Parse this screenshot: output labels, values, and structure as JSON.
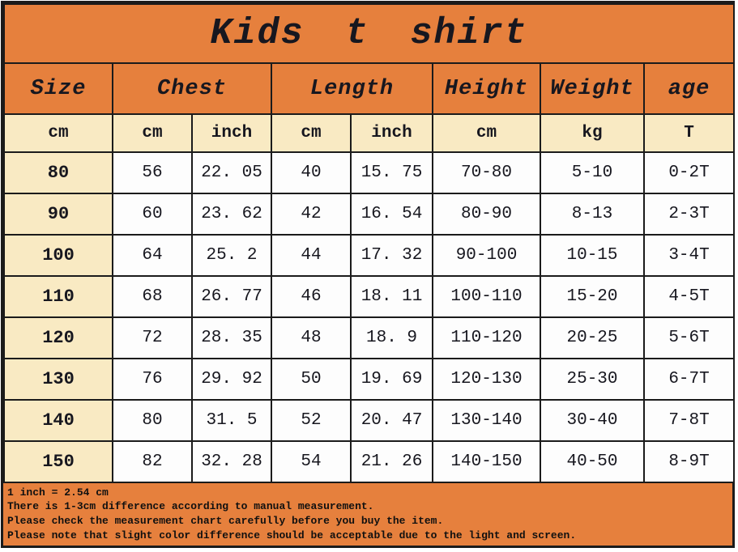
{
  "colors": {
    "orange": "#e6803d",
    "cream": "#f9eac3",
    "cell_white": "#fdfdfd",
    "border_black": "#1b1b1b",
    "text": "#17171f"
  },
  "chart_data": {
    "type": "table",
    "title": "Kids t shirt",
    "column_groups": [
      {
        "label": "Size",
        "span": 1
      },
      {
        "label": "Chest",
        "span": 2
      },
      {
        "label": "Length",
        "span": 2
      },
      {
        "label": "Height",
        "span": 1
      },
      {
        "label": "Weight",
        "span": 1
      },
      {
        "label": "age",
        "span": 1
      }
    ],
    "unit_row": [
      "cm",
      "cm",
      "inch",
      "cm",
      "inch",
      "cm",
      "kg",
      "T"
    ],
    "rows": [
      [
        "80",
        "56",
        "22. 05",
        "40",
        "15. 75",
        "70-80",
        "5-10",
        "0-2T"
      ],
      [
        "90",
        "60",
        "23. 62",
        "42",
        "16. 54",
        "80-90",
        "8-13",
        "2-3T"
      ],
      [
        "100",
        "64",
        "25. 2",
        "44",
        "17. 32",
        "90-100",
        "10-15",
        "3-4T"
      ],
      [
        "110",
        "68",
        "26. 77",
        "46",
        "18. 11",
        "100-110",
        "15-20",
        "4-5T"
      ],
      [
        "120",
        "72",
        "28. 35",
        "48",
        "18. 9",
        "110-120",
        "20-25",
        "5-6T"
      ],
      [
        "130",
        "76",
        "29. 92",
        "50",
        "19. 69",
        "120-130",
        "25-30",
        "6-7T"
      ],
      [
        "140",
        "80",
        "31. 5",
        "52",
        "20. 47",
        "130-140",
        "30-40",
        "7-8T"
      ],
      [
        "150",
        "82",
        "32. 28",
        "54",
        "21. 26",
        "140-150",
        "40-50",
        "8-9T"
      ]
    ],
    "notes": [
      "1 inch = 2.54 cm",
      "There is 1-3cm difference according to manual measurement.",
      "Please check the measurement chart carefully before you buy the item.",
      "Please note that slight color difference should be acceptable due to the light and screen."
    ]
  }
}
